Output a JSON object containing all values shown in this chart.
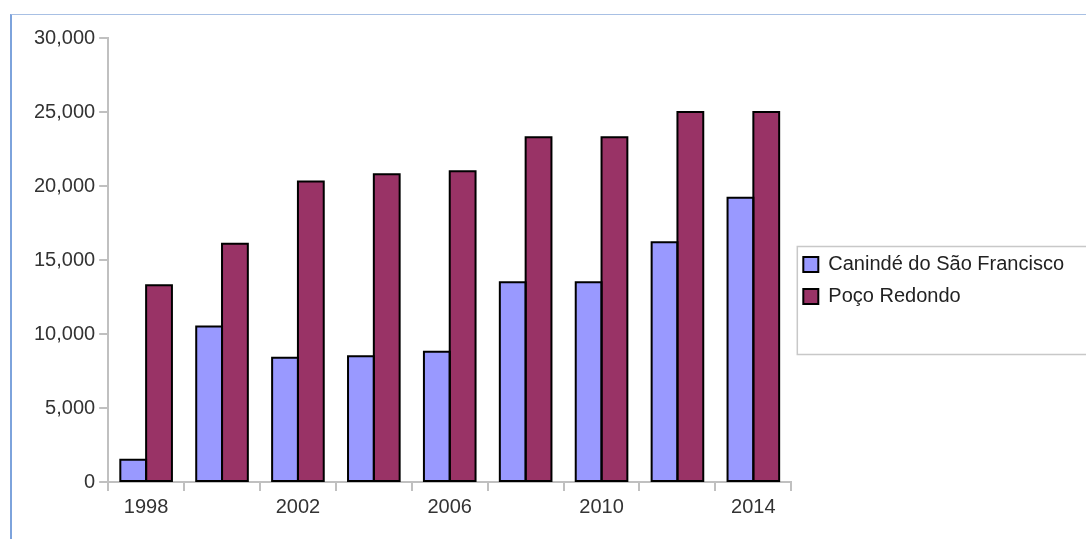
{
  "chart_data": {
    "type": "bar",
    "categories": [
      "1998",
      null,
      "2002",
      null,
      "2006",
      null,
      "2010",
      null,
      "2014"
    ],
    "series": [
      {
        "name": "Canindé do São Francisco",
        "color": "#9999ff",
        "values": [
          1500,
          10500,
          8400,
          8500,
          8800,
          13500,
          13500,
          16200,
          19200
        ]
      },
      {
        "name": "Poço Redondo",
        "color": "#993366",
        "values": [
          13300,
          16100,
          20300,
          20800,
          21000,
          23300,
          23300,
          25000,
          25000
        ]
      }
    ],
    "ylim": [
      0,
      30000
    ],
    "yticks": [
      {
        "value": 0,
        "label": "0"
      },
      {
        "value": 5000,
        "label": "5,000"
      },
      {
        "value": 10000,
        "label": "10,000"
      },
      {
        "value": 15000,
        "label": "15,000"
      },
      {
        "value": 20000,
        "label": "20,000"
      },
      {
        "value": 25000,
        "label": "25,000"
      },
      {
        "value": 30000,
        "label": "30,000"
      }
    ],
    "legend": "right"
  }
}
